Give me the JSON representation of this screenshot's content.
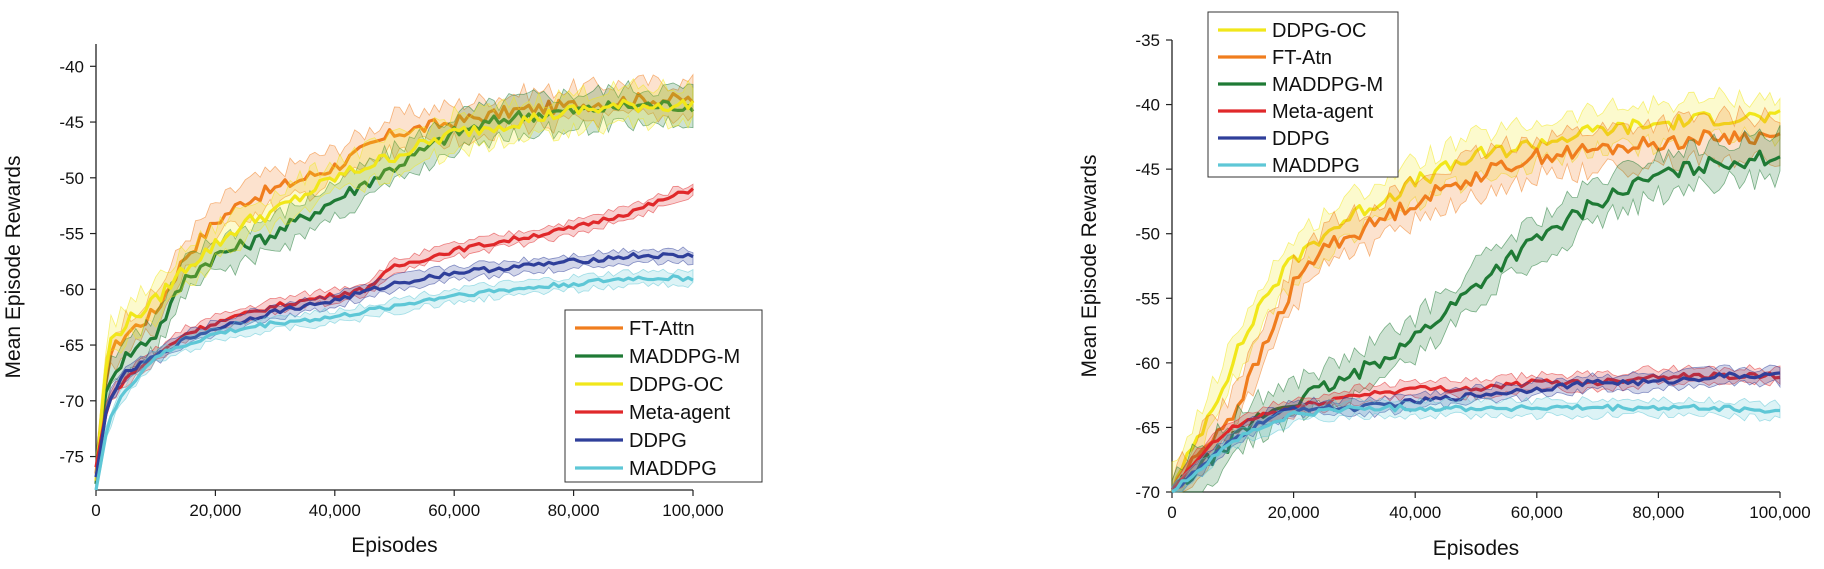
{
  "chart_data": [
    {
      "type": "line",
      "title": "",
      "xlabel": "Episodes",
      "ylabel": "Mean Episode Rewards",
      "xlim": [
        0,
        100000
      ],
      "ylim": [
        -78,
        -38
      ],
      "xticks": [
        0,
        20000,
        40000,
        60000,
        80000,
        100000
      ],
      "xtick_labels": [
        "0",
        "20,000",
        "40,000",
        "60,000",
        "80,000",
        "100,000"
      ],
      "yticks": [
        -75,
        -70,
        -65,
        -60,
        -55,
        -50,
        -45,
        -40
      ],
      "ytick_labels": [
        "-75",
        "-70",
        "-65",
        "-60",
        "-55",
        "-50",
        "-45",
        "-40"
      ],
      "legend_position": "bottom-right",
      "legend": [
        "FT-Attn",
        "MADDPG-M",
        "DDPG-OC",
        "Meta-agent",
        "DDPG",
        "MADDPG"
      ],
      "series": [
        {
          "name": "FT-Attn",
          "color": "#f07d1e",
          "x": [
            0,
            2000,
            5000,
            10000,
            15000,
            20000,
            25000,
            30000,
            40000,
            50000,
            60000,
            70000,
            80000,
            90000,
            100000
          ],
          "y": [
            -77,
            -66,
            -64,
            -62,
            -57,
            -54,
            -52,
            -51,
            -49,
            -46,
            -45,
            -44,
            -43.5,
            -43,
            -43
          ]
        },
        {
          "name": "MADDPG-M",
          "color": "#1f7a35",
          "x": [
            0,
            2000,
            5000,
            10000,
            15000,
            20000,
            25000,
            30000,
            40000,
            50000,
            60000,
            70000,
            80000,
            90000,
            100000
          ],
          "y": [
            -77,
            -68,
            -66,
            -64,
            -59,
            -57,
            -56,
            -55,
            -52,
            -49,
            -46,
            -44.5,
            -44,
            -43.5,
            -43.5
          ]
        },
        {
          "name": "DDPG-OC",
          "color": "#f1e71a",
          "x": [
            0,
            2000,
            5000,
            10000,
            15000,
            20000,
            25000,
            30000,
            40000,
            50000,
            60000,
            70000,
            80000,
            90000,
            100000
          ],
          "y": [
            -77,
            -65,
            -63,
            -61,
            -58,
            -56,
            -54,
            -53,
            -50,
            -48,
            -46,
            -45,
            -44,
            -43.5,
            -43.5
          ]
        },
        {
          "name": "Meta-agent",
          "color": "#e0282a",
          "x": [
            0,
            2000,
            5000,
            10000,
            15000,
            20000,
            30000,
            40000,
            45000,
            50000,
            60000,
            70000,
            80000,
            90000,
            100000
          ],
          "y": [
            -76,
            -70,
            -68,
            -66,
            -64,
            -63,
            -61.5,
            -60.5,
            -60,
            -58,
            -56.5,
            -55.5,
            -54.5,
            -53,
            -51
          ]
        },
        {
          "name": "DDPG",
          "color": "#2f3f9a",
          "x": [
            0,
            2000,
            5000,
            10000,
            15000,
            20000,
            30000,
            40000,
            50000,
            60000,
            70000,
            80000,
            90000,
            100000
          ],
          "y": [
            -77,
            -70,
            -67.5,
            -66,
            -64.5,
            -63.5,
            -62,
            -61,
            -59.5,
            -58.5,
            -58,
            -57.5,
            -57,
            -57
          ]
        },
        {
          "name": "MADDPG",
          "color": "#5ec7d6",
          "x": [
            0,
            2000,
            5000,
            10000,
            15000,
            20000,
            30000,
            40000,
            50000,
            60000,
            70000,
            80000,
            90000,
            100000
          ],
          "y": [
            -78,
            -72,
            -69,
            -66,
            -65,
            -64,
            -63,
            -62.5,
            -61.5,
            -60.5,
            -60,
            -59.5,
            -59,
            -59
          ]
        }
      ]
    },
    {
      "type": "line",
      "title": "",
      "xlabel": "Episodes",
      "ylabel": "Mean Episode Rewards",
      "xlim": [
        0,
        100000
      ],
      "ylim": [
        -70,
        -35
      ],
      "xticks": [
        0,
        20000,
        40000,
        60000,
        80000,
        100000
      ],
      "xtick_labels": [
        "0",
        "20,000",
        "40,000",
        "60,000",
        "80,000",
        "100,000"
      ],
      "yticks": [
        -70,
        -65,
        -60,
        -55,
        -50,
        -45,
        -40,
        -35
      ],
      "ytick_labels": [
        "-70",
        "-65",
        "-60",
        "-55",
        "-50",
        "-45",
        "-40",
        "-35"
      ],
      "legend_position": "top-left",
      "legend": [
        "DDPG-OC",
        "FT-Atn",
        "MADDPG-M",
        "Meta-agent",
        "DDPG",
        "MADDPG"
      ],
      "series": [
        {
          "name": "DDPG-OC",
          "color": "#f1e71a",
          "x": [
            0,
            3000,
            6000,
            10000,
            15000,
            20000,
            25000,
            30000,
            40000,
            50000,
            60000,
            70000,
            80000,
            90000,
            100000
          ],
          "y": [
            -70,
            -67,
            -64,
            -60,
            -55,
            -52,
            -50,
            -48.5,
            -46,
            -44,
            -43,
            -42,
            -41.5,
            -41,
            -41
          ]
        },
        {
          "name": "FT-Atn",
          "color": "#f07d1e",
          "x": [
            0,
            3000,
            6000,
            10000,
            15000,
            20000,
            25000,
            30000,
            40000,
            50000,
            60000,
            70000,
            80000,
            90000,
            100000
          ],
          "y": [
            -70,
            -68,
            -66,
            -64,
            -59,
            -54,
            -51,
            -50,
            -47.5,
            -45.5,
            -44,
            -43.5,
            -43,
            -42.5,
            -42.5
          ]
        },
        {
          "name": "MADDPG-M",
          "color": "#1f7a35",
          "x": [
            0,
            5000,
            10000,
            15000,
            20000,
            25000,
            30000,
            35000,
            40000,
            45000,
            50000,
            55000,
            60000,
            65000,
            70000,
            75000,
            80000,
            90000,
            100000
          ],
          "y": [
            -70,
            -68,
            -66,
            -64,
            -63,
            -62,
            -61,
            -59.5,
            -58,
            -56,
            -54,
            -52,
            -50.5,
            -49,
            -47.5,
            -46.5,
            -45.5,
            -44.5,
            -44
          ]
        },
        {
          "name": "Meta-agent",
          "color": "#e0282a",
          "x": [
            0,
            5000,
            10000,
            15000,
            20000,
            30000,
            40000,
            50000,
            60000,
            70000,
            80000,
            90000,
            100000
          ],
          "y": [
            -70,
            -67,
            -65,
            -64,
            -63.5,
            -62.5,
            -62,
            -62,
            -61.5,
            -61.5,
            -61,
            -61,
            -61
          ]
        },
        {
          "name": "DDPG",
          "color": "#2f3f9a",
          "x": [
            0,
            5000,
            10000,
            15000,
            20000,
            30000,
            40000,
            50000,
            60000,
            70000,
            80000,
            90000,
            100000
          ],
          "y": [
            -70,
            -68,
            -66,
            -64.5,
            -63.5,
            -63.5,
            -63,
            -62.5,
            -62,
            -61.5,
            -61.5,
            -61,
            -61
          ]
        },
        {
          "name": "MADDPG",
          "color": "#5ec7d6",
          "x": [
            0,
            5000,
            10000,
            15000,
            20000,
            30000,
            40000,
            50000,
            60000,
            70000,
            80000,
            90000,
            100000
          ],
          "y": [
            -70,
            -68,
            -66,
            -65,
            -64,
            -63.5,
            -63.5,
            -63.5,
            -63.5,
            -63.5,
            -63.5,
            -63.5,
            -63.8
          ]
        }
      ]
    }
  ]
}
